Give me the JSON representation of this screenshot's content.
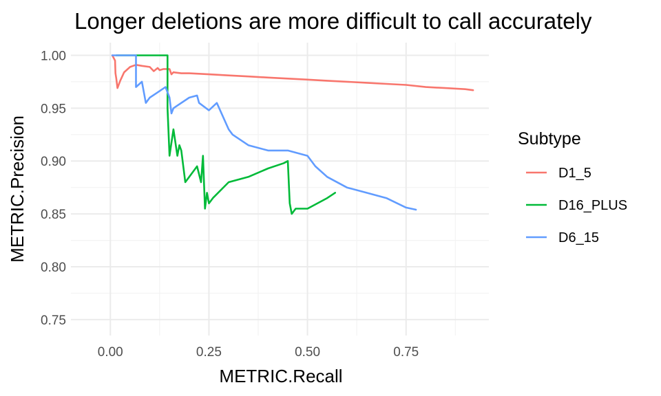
{
  "chart_data": {
    "type": "line",
    "title": "Longer deletions are more difficult to call accurately",
    "xlabel": "METRIC.Recall",
    "ylabel": "METRIC.Precision",
    "xlim": [
      -0.1,
      0.96
    ],
    "ylim": [
      0.735,
      1.012
    ],
    "x_ticks": [
      0.0,
      0.25,
      0.5,
      0.75
    ],
    "x_tick_labels": [
      "0.00",
      "0.25",
      "0.50",
      "0.75"
    ],
    "y_ticks": [
      0.75,
      0.8,
      0.85,
      0.9,
      0.95,
      1.0
    ],
    "y_tick_labels": [
      "0.75",
      "0.80",
      "0.85",
      "0.90",
      "0.95",
      "1.00"
    ],
    "grid": true,
    "legend": {
      "title": "Subtype",
      "position": "right"
    },
    "series": [
      {
        "name": "D1_5",
        "color": "#F8766D",
        "x": [
          0.005,
          0.012,
          0.013,
          0.015,
          0.018,
          0.025,
          0.035,
          0.05,
          0.065,
          0.08,
          0.1,
          0.11,
          0.12,
          0.125,
          0.135,
          0.15,
          0.155,
          0.16,
          0.18,
          0.2,
          0.25,
          0.3,
          0.35,
          0.4,
          0.45,
          0.5,
          0.55,
          0.6,
          0.65,
          0.7,
          0.75,
          0.8,
          0.85,
          0.9,
          0.92
        ],
        "y": [
          1.0,
          0.995,
          0.983,
          0.978,
          0.969,
          0.976,
          0.984,
          0.989,
          0.991,
          0.99,
          0.989,
          0.985,
          0.988,
          0.986,
          0.987,
          0.987,
          0.982,
          0.984,
          0.983,
          0.983,
          0.982,
          0.981,
          0.98,
          0.979,
          0.978,
          0.977,
          0.976,
          0.975,
          0.974,
          0.973,
          0.972,
          0.97,
          0.969,
          0.968,
          0.967
        ]
      },
      {
        "name": "D16_PLUS",
        "color": "#00BA38",
        "x": [
          0.015,
          0.145,
          0.145,
          0.15,
          0.16,
          0.17,
          0.175,
          0.18,
          0.19,
          0.2,
          0.21,
          0.22,
          0.23,
          0.235,
          0.24,
          0.245,
          0.25,
          0.26,
          0.3,
          0.35,
          0.4,
          0.44,
          0.45,
          0.455,
          0.46,
          0.47,
          0.5,
          0.55,
          0.57
        ],
        "y": [
          1.0,
          1.0,
          0.95,
          0.905,
          0.93,
          0.905,
          0.915,
          0.91,
          0.88,
          0.885,
          0.89,
          0.895,
          0.88,
          0.905,
          0.855,
          0.87,
          0.86,
          0.865,
          0.88,
          0.885,
          0.893,
          0.898,
          0.9,
          0.86,
          0.85,
          0.855,
          0.855,
          0.865,
          0.87
        ]
      },
      {
        "name": "D6_15",
        "color": "#619CFF",
        "x": [
          0.005,
          0.065,
          0.065,
          0.08,
          0.09,
          0.1,
          0.12,
          0.14,
          0.15,
          0.155,
          0.16,
          0.2,
          0.22,
          0.225,
          0.25,
          0.27,
          0.3,
          0.31,
          0.35,
          0.4,
          0.45,
          0.5,
          0.52,
          0.55,
          0.6,
          0.65,
          0.7,
          0.75,
          0.775
        ],
        "y": [
          1.0,
          1.0,
          0.97,
          0.975,
          0.955,
          0.96,
          0.965,
          0.97,
          0.96,
          0.945,
          0.95,
          0.96,
          0.962,
          0.955,
          0.948,
          0.955,
          0.93,
          0.925,
          0.915,
          0.91,
          0.91,
          0.905,
          0.895,
          0.885,
          0.875,
          0.87,
          0.865,
          0.856,
          0.854
        ]
      }
    ]
  }
}
